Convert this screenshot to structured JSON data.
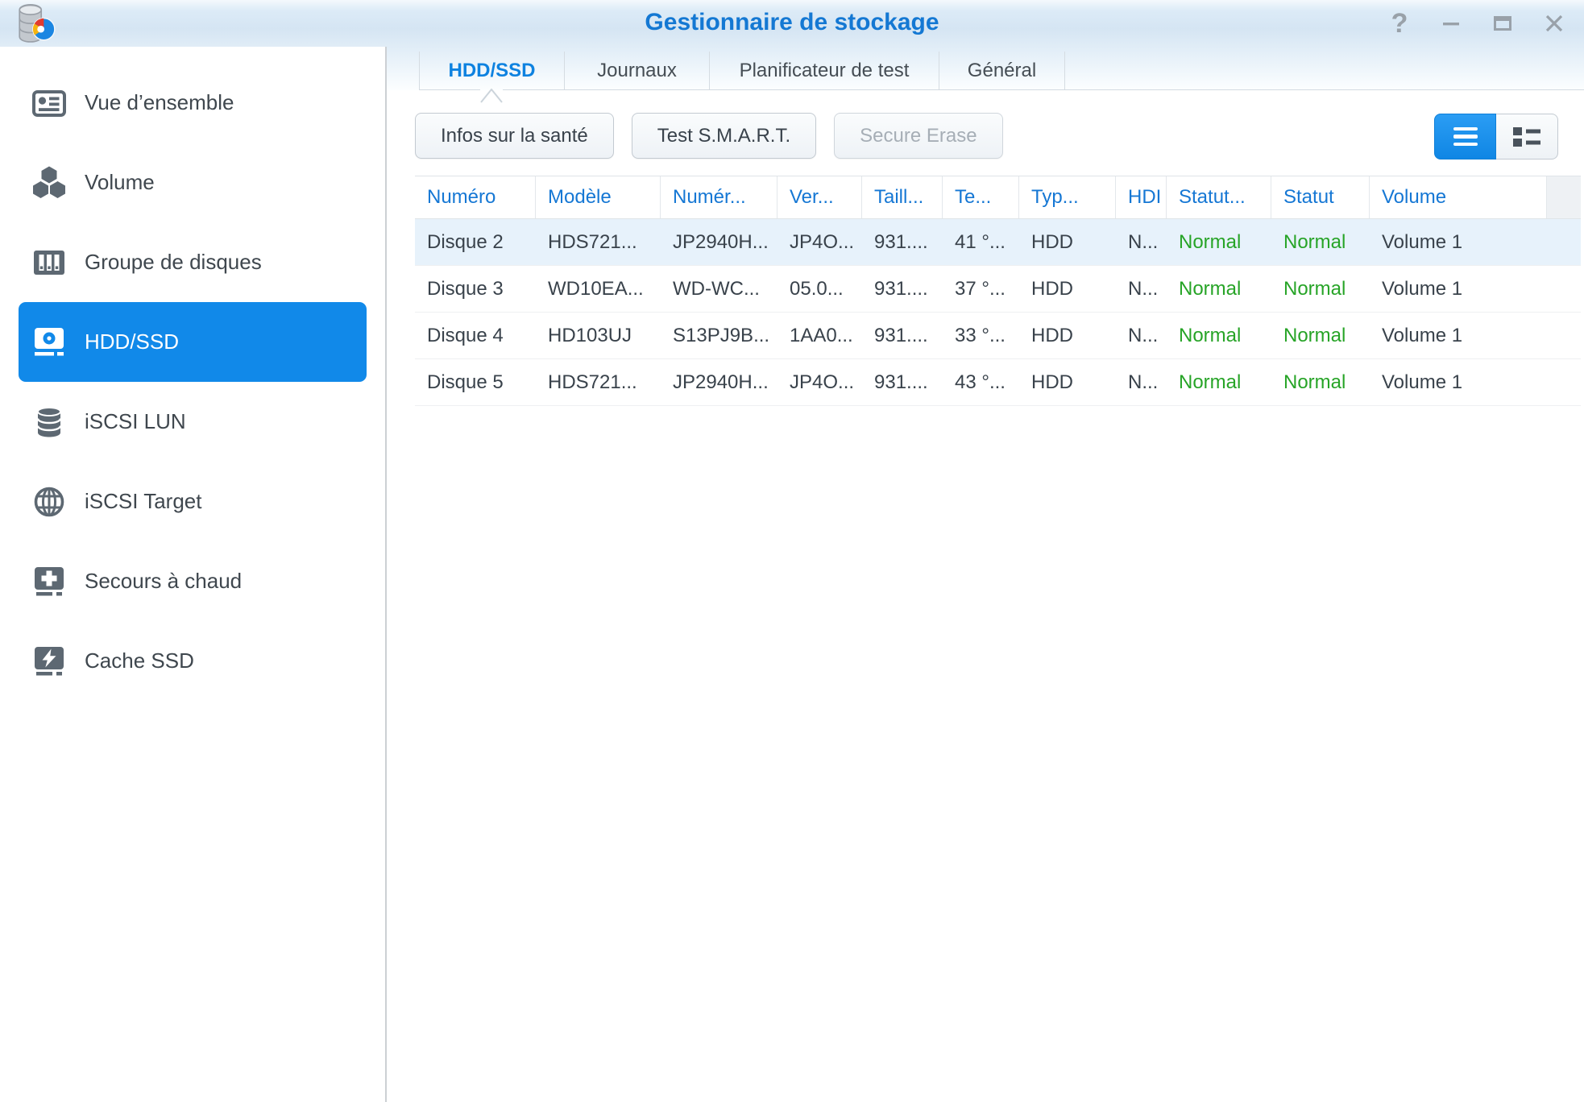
{
  "window": {
    "title": "Gestionnaire de stockage",
    "help_glyph": "?"
  },
  "colors": {
    "accent_blue": "#1189e9",
    "title_blue": "#1478d3",
    "header_blue": "#1577d4",
    "status_green": "#27a427",
    "selected_row_bg": "#e7f2fb"
  },
  "sidebar": {
    "items": [
      {
        "label": "Vue d’ensemble",
        "icon": "overview-icon",
        "selected": false
      },
      {
        "label": "Volume",
        "icon": "volume-icon",
        "selected": false
      },
      {
        "label": "Groupe de disques",
        "icon": "disk-group-icon",
        "selected": false
      },
      {
        "label": "HDD/SSD",
        "icon": "hdd-icon",
        "selected": true
      },
      {
        "label": "iSCSI LUN",
        "icon": "iscsi-lun-icon",
        "selected": false
      },
      {
        "label": "iSCSI Target",
        "icon": "iscsi-target-icon",
        "selected": false
      },
      {
        "label": "Secours à chaud",
        "icon": "hot-spare-icon",
        "selected": false
      },
      {
        "label": "Cache SSD",
        "icon": "ssd-cache-icon",
        "selected": false
      }
    ]
  },
  "tabs": [
    {
      "label": "HDD/SSD",
      "active": true
    },
    {
      "label": "Journaux",
      "active": false
    },
    {
      "label": "Planificateur de test",
      "active": false
    },
    {
      "label": "Général",
      "active": false
    }
  ],
  "toolbar": {
    "buttons": [
      {
        "label": "Infos sur la santé",
        "enabled": true
      },
      {
        "label": "Test S.M.A.R.T.",
        "enabled": true
      },
      {
        "label": "Secure Erase",
        "enabled": false
      }
    ],
    "view_toggle": {
      "active_view": "list",
      "icons": [
        "list-view-icon",
        "detail-view-icon"
      ]
    }
  },
  "table": {
    "columns": [
      "Numéro",
      "Modèle",
      "Numér...",
      "Ver...",
      "Taill...",
      "Te...",
      "Typ...",
      "HDI",
      "Statut...",
      "Statut",
      "Volume"
    ],
    "rows": [
      {
        "selected": true,
        "cells": [
          "Disque 2",
          "HDS721...",
          "JP2940H...",
          "JP4O...",
          "931....",
          "41 °...",
          "HDD",
          "N...",
          "Normal",
          "Normal",
          "Volume 1"
        ]
      },
      {
        "selected": false,
        "cells": [
          "Disque 3",
          "WD10EA...",
          "WD-WC...",
          "05.0...",
          "931....",
          "37 °...",
          "HDD",
          "N...",
          "Normal",
          "Normal",
          "Volume 1"
        ]
      },
      {
        "selected": false,
        "cells": [
          "Disque 4",
          "HD103UJ",
          "S13PJ9B...",
          "1AA0...",
          "931....",
          "33 °...",
          "HDD",
          "N...",
          "Normal",
          "Normal",
          "Volume 1"
        ]
      },
      {
        "selected": false,
        "cells": [
          "Disque 5",
          "HDS721...",
          "JP2940H...",
          "JP4O...",
          "931....",
          "43 °...",
          "HDD",
          "N...",
          "Normal",
          "Normal",
          "Volume 1"
        ]
      }
    ]
  }
}
